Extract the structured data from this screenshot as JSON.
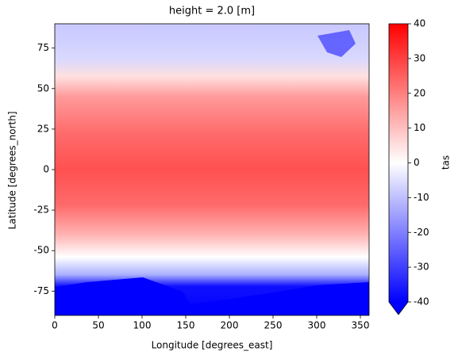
{
  "chart_data": {
    "type": "heatmap",
    "title": "height = 2.0 [m]",
    "xlabel": "Longitude [degrees_east]",
    "ylabel": "Latitude [degrees_north]",
    "xlim": [
      0,
      360
    ],
    "xticks": [
      0,
      50,
      100,
      150,
      200,
      250,
      300,
      350
    ],
    "ylim": [
      -90,
      90
    ],
    "yticks": [
      -75,
      -50,
      -25,
      0,
      25,
      50,
      75
    ],
    "colorbar": {
      "label": "tas",
      "lim": [
        -40,
        40
      ],
      "ticks": [
        -40,
        -30,
        -20,
        -10,
        0,
        10,
        20,
        30,
        40
      ],
      "colors": [
        "#0000ff",
        "#ffffff",
        "#ff0000"
      ],
      "extend": "min"
    }
  }
}
